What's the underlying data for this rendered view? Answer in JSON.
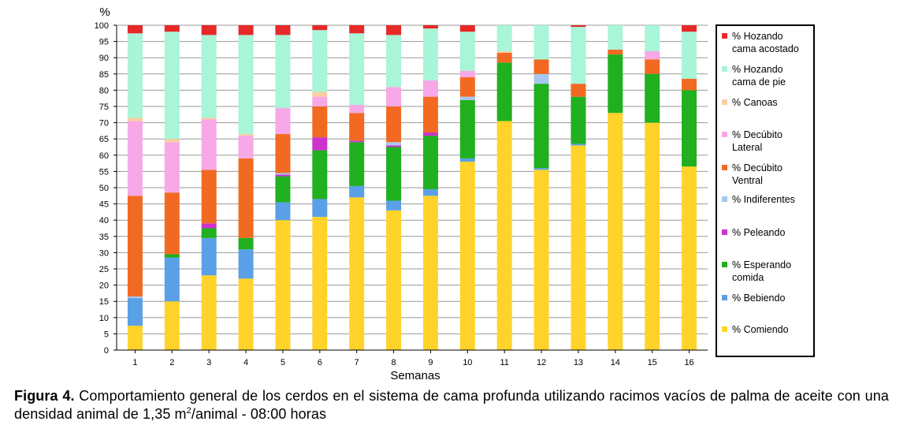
{
  "chart_data": {
    "type": "bar",
    "stacked": true,
    "ylabel": "%",
    "xlabel": "Semanas",
    "ylim": [
      0,
      100
    ],
    "yticks": [
      0,
      5,
      10,
      15,
      20,
      25,
      30,
      35,
      40,
      45,
      50,
      55,
      60,
      65,
      70,
      75,
      80,
      85,
      90,
      95,
      100
    ],
    "grid": true,
    "legend_position": "right",
    "categories": [
      "1",
      "2",
      "3",
      "4",
      "5",
      "6",
      "7",
      "8",
      "9",
      "10",
      "11",
      "12",
      "13",
      "14",
      "15",
      "16"
    ],
    "series": [
      {
        "name": "% Comiendo",
        "color": "#FFD32A",
        "values": [
          7.5,
          15,
          23,
          22,
          40,
          41,
          47,
          43,
          47.5,
          58,
          70.5,
          55.5,
          63,
          73,
          70,
          56.5
        ]
      },
      {
        "name": "% Bebiendo",
        "color": "#5AA0E6",
        "values": [
          8.5,
          13.5,
          11.5,
          9,
          5.5,
          5.5,
          3.5,
          3,
          2,
          1,
          0,
          0.5,
          0.5,
          0,
          0,
          0
        ]
      },
      {
        "name": "% Esperando comida",
        "color": "#20B020",
        "values": [
          0,
          1,
          3,
          3.5,
          8,
          15,
          13.5,
          16.5,
          16.5,
          18,
          18,
          26,
          14.5,
          18,
          15,
          23.5
        ]
      },
      {
        "name": "% Peleando",
        "color": "#CC33CC",
        "values": [
          0,
          0,
          1.5,
          0,
          0.5,
          4,
          0.5,
          0.5,
          1,
          0,
          0,
          0,
          0,
          0,
          0,
          0
        ]
      },
      {
        "name": "% Indiferentes",
        "color": "#A7C8EE",
        "values": [
          0.5,
          0,
          0,
          0,
          0.5,
          0,
          0,
          1,
          0,
          1,
          0,
          3,
          0,
          0,
          0,
          0
        ]
      },
      {
        "name": "% Decúbito Ventral",
        "color": "#F26A22",
        "values": [
          31,
          19,
          16.5,
          24.5,
          12,
          9.5,
          8.5,
          11,
          11,
          6,
          3,
          4.5,
          4,
          1.5,
          4.5,
          3.5
        ]
      },
      {
        "name": "% Decúbito Lateral",
        "color": "#F7A8E6",
        "values": [
          23,
          15.5,
          15.5,
          7,
          8,
          3,
          2.5,
          6,
          5,
          2,
          0,
          0,
          0,
          0,
          2.5,
          0
        ]
      },
      {
        "name": "% Canoas",
        "color": "#F8CFA0",
        "values": [
          1,
          1,
          0.5,
          0.5,
          0,
          1.5,
          0,
          0,
          0,
          0,
          0.5,
          0,
          0,
          0,
          0,
          0
        ]
      },
      {
        "name": "% Hozando cama de pie",
        "color": "#A8F5D8",
        "values": [
          26,
          33,
          25.5,
          30.5,
          22.5,
          19,
          22,
          16,
          16,
          12,
          8,
          10.5,
          17.5,
          7.5,
          8,
          14.5
        ]
      },
      {
        "name": "% Hozando cama acostado",
        "color": "#E62828",
        "values": [
          2.5,
          2,
          3,
          3,
          3,
          1.5,
          2.5,
          3,
          1,
          2,
          0,
          0,
          0.5,
          0,
          0,
          2
        ]
      }
    ]
  },
  "legend": [
    {
      "lines": [
        "% Hozando",
        "cama acostado"
      ],
      "color": "#E62828"
    },
    {
      "lines": [
        "% Hozando",
        "cama de pie"
      ],
      "color": "#A8F5D8"
    },
    {
      "lines": [
        "% Canoas"
      ],
      "color": "#F8CFA0"
    },
    {
      "lines": [
        "% Decúbito",
        "Lateral"
      ],
      "color": "#F7A8E6"
    },
    {
      "lines": [
        "% Decúbito",
        "Ventral"
      ],
      "color": "#F26A22"
    },
    {
      "lines": [
        "% Indiferentes"
      ],
      "color": "#A7C8EE"
    },
    {
      "lines": [
        "% Peleando"
      ],
      "color": "#CC33CC"
    },
    {
      "lines": [
        "% Esperando",
        "comida"
      ],
      "color": "#20B020"
    },
    {
      "lines": [
        "% Bebiendo"
      ],
      "color": "#5AA0E6"
    },
    {
      "lines": [
        "% Comiendo"
      ],
      "color": "#FFD32A"
    }
  ],
  "caption": {
    "label": "Figura 4.",
    "text_before_sup": " Comportamiento general de los cerdos en el sistema de cama profunda utilizando racimos vacíos de palma de aceite con una densidad animal de 1,35 m",
    "sup": "2",
    "text_after_sup": "/animal - 08:00 horas"
  }
}
